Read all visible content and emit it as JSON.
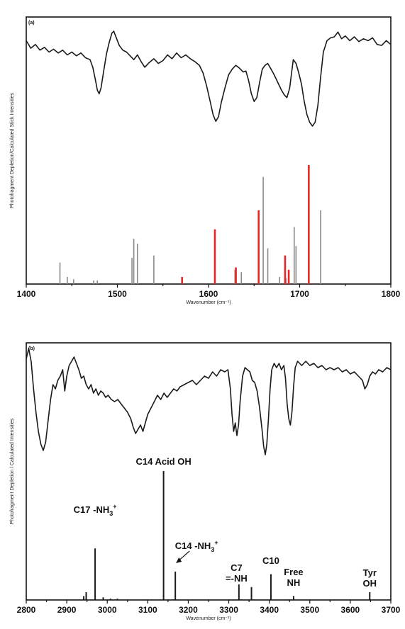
{
  "chart_data": [
    {
      "type": "bar",
      "panel_label": "(a)",
      "xlabel": "Wavenumber (cm⁻¹)",
      "ylabel": "Photofragment Depletion/Calculated Stick Intensities",
      "xlim": [
        1400,
        1800
      ],
      "xticks": [
        1400,
        1500,
        1600,
        1700,
        1800
      ],
      "grid": false,
      "legend": "none",
      "colors": {
        "spectrum": "#1a1a1a",
        "gray_sticks": "#8a8a8a",
        "red_sticks": "#e8262a",
        "axes": "#111111"
      },
      "spectrum": {
        "points": [
          [
            1400,
            0.9
          ],
          [
            1405,
            0.82
          ],
          [
            1410,
            0.86
          ],
          [
            1415,
            0.8
          ],
          [
            1420,
            0.83
          ],
          [
            1425,
            0.78
          ],
          [
            1430,
            0.81
          ],
          [
            1435,
            0.77
          ],
          [
            1440,
            0.8
          ],
          [
            1445,
            0.75
          ],
          [
            1450,
            0.78
          ],
          [
            1455,
            0.74
          ],
          [
            1460,
            0.77
          ],
          [
            1465,
            0.72
          ],
          [
            1470,
            0.7
          ],
          [
            1473,
            0.62
          ],
          [
            1476,
            0.48
          ],
          [
            1478,
            0.38
          ],
          [
            1480,
            0.34
          ],
          [
            1482,
            0.4
          ],
          [
            1485,
            0.58
          ],
          [
            1488,
            0.76
          ],
          [
            1491,
            0.88
          ],
          [
            1494,
            0.98
          ],
          [
            1496,
            1.0
          ],
          [
            1498,
            0.95
          ],
          [
            1502,
            0.85
          ],
          [
            1506,
            0.8
          ],
          [
            1510,
            0.78
          ],
          [
            1514,
            0.74
          ],
          [
            1518,
            0.7
          ],
          [
            1522,
            0.75
          ],
          [
            1526,
            0.68
          ],
          [
            1530,
            0.62
          ],
          [
            1535,
            0.67
          ],
          [
            1540,
            0.71
          ],
          [
            1545,
            0.66
          ],
          [
            1550,
            0.69
          ],
          [
            1555,
            0.75
          ],
          [
            1560,
            0.71
          ],
          [
            1565,
            0.77
          ],
          [
            1570,
            0.72
          ],
          [
            1575,
            0.75
          ],
          [
            1580,
            0.71
          ],
          [
            1585,
            0.68
          ],
          [
            1590,
            0.64
          ],
          [
            1594,
            0.56
          ],
          [
            1598,
            0.42
          ],
          [
            1602,
            0.25
          ],
          [
            1605,
            0.12
          ],
          [
            1608,
            0.05
          ],
          [
            1611,
            0.1
          ],
          [
            1614,
            0.25
          ],
          [
            1618,
            0.4
          ],
          [
            1622,
            0.54
          ],
          [
            1626,
            0.6
          ],
          [
            1630,
            0.64
          ],
          [
            1634,
            0.61
          ],
          [
            1638,
            0.57
          ],
          [
            1641,
            0.58
          ],
          [
            1644,
            0.48
          ],
          [
            1647,
            0.34
          ],
          [
            1650,
            0.26
          ],
          [
            1653,
            0.3
          ],
          [
            1656,
            0.46
          ],
          [
            1659,
            0.6
          ],
          [
            1662,
            0.64
          ],
          [
            1665,
            0.66
          ],
          [
            1668,
            0.61
          ],
          [
            1671,
            0.56
          ],
          [
            1674,
            0.5
          ],
          [
            1677,
            0.44
          ],
          [
            1680,
            0.38
          ],
          [
            1683,
            0.33
          ],
          [
            1686,
            0.3
          ],
          [
            1689,
            0.4
          ],
          [
            1691,
            0.55
          ],
          [
            1693,
            0.7
          ],
          [
            1696,
            0.66
          ],
          [
            1699,
            0.56
          ],
          [
            1702,
            0.44
          ],
          [
            1705,
            0.26
          ],
          [
            1708,
            0.12
          ],
          [
            1711,
            0.04
          ],
          [
            1714,
            0.0
          ],
          [
            1717,
            0.04
          ],
          [
            1720,
            0.22
          ],
          [
            1723,
            0.52
          ],
          [
            1726,
            0.78
          ],
          [
            1730,
            0.9
          ],
          [
            1734,
            0.93
          ],
          [
            1738,
            0.94
          ],
          [
            1742,
            0.99
          ],
          [
            1746,
            0.92
          ],
          [
            1750,
            0.95
          ],
          [
            1755,
            0.9
          ],
          [
            1760,
            0.94
          ],
          [
            1765,
            0.89
          ],
          [
            1770,
            0.92
          ],
          [
            1775,
            0.9
          ],
          [
            1780,
            0.93
          ],
          [
            1785,
            0.86
          ],
          [
            1790,
            0.85
          ],
          [
            1795,
            0.9
          ],
          [
            1800,
            0.86
          ]
        ]
      },
      "series": [
        {
          "values": [
            [
              1437,
              0.18
            ],
            [
              1445,
              0.06
            ],
            [
              1452,
              0.04
            ],
            [
              1474,
              0.03
            ],
            [
              1478,
              0.03
            ],
            [
              1516,
              0.22
            ],
            [
              1518,
              0.38
            ],
            [
              1522,
              0.34
            ],
            [
              1540,
              0.24
            ],
            [
              1629,
              0.12
            ],
            [
              1636,
              0.1
            ],
            [
              1660,
              0.9
            ],
            [
              1665,
              0.3
            ],
            [
              1678,
              0.06
            ],
            [
              1685,
              0.05
            ],
            [
              1694,
              0.48
            ],
            [
              1696,
              0.32
            ],
            [
              1723,
              0.62
            ]
          ]
        },
        {
          "values": [
            [
              1571,
              0.06
            ],
            [
              1607,
              0.46
            ],
            [
              1630,
              0.14
            ],
            [
              1655,
              0.62
            ],
            [
              1684,
              0.24
            ],
            [
              1688,
              0.12
            ],
            [
              1710,
              1.0
            ]
          ]
        }
      ]
    },
    {
      "type": "bar",
      "panel_label": "(b)",
      "xlabel": "Wavenumber (cm⁻¹)",
      "ylabel": "Photofragment Depletion / Calculated Intensities",
      "xlim": [
        2800,
        3700
      ],
      "xticks": [
        2800,
        2900,
        3000,
        3100,
        3200,
        3300,
        3400,
        3500,
        3600,
        3700
      ],
      "grid": false,
      "legend": "none",
      "colors": {
        "spectrum": "#1a1a1a",
        "sticks": "#1a1a1a",
        "axes": "#111111"
      },
      "spectrum": {
        "points": [
          [
            2800,
            0.9
          ],
          [
            2806,
            1.0
          ],
          [
            2812,
            0.88
          ],
          [
            2818,
            0.62
          ],
          [
            2824,
            0.4
          ],
          [
            2830,
            0.22
          ],
          [
            2836,
            0.1
          ],
          [
            2842,
            0.04
          ],
          [
            2848,
            0.12
          ],
          [
            2854,
            0.32
          ],
          [
            2860,
            0.52
          ],
          [
            2866,
            0.66
          ],
          [
            2872,
            0.62
          ],
          [
            2878,
            0.7
          ],
          [
            2884,
            0.74
          ],
          [
            2890,
            0.8
          ],
          [
            2895,
            0.6
          ],
          [
            2900,
            0.74
          ],
          [
            2906,
            0.84
          ],
          [
            2912,
            0.88
          ],
          [
            2918,
            0.92
          ],
          [
            2924,
            0.86
          ],
          [
            2930,
            0.8
          ],
          [
            2936,
            0.72
          ],
          [
            2942,
            0.74
          ],
          [
            2948,
            0.66
          ],
          [
            2954,
            0.62
          ],
          [
            2960,
            0.66
          ],
          [
            2966,
            0.58
          ],
          [
            2972,
            0.62
          ],
          [
            2978,
            0.56
          ],
          [
            2984,
            0.6
          ],
          [
            2990,
            0.58
          ],
          [
            2996,
            0.54
          ],
          [
            3002,
            0.56
          ],
          [
            3010,
            0.52
          ],
          [
            3018,
            0.5
          ],
          [
            3026,
            0.52
          ],
          [
            3034,
            0.48
          ],
          [
            3042,
            0.44
          ],
          [
            3050,
            0.4
          ],
          [
            3058,
            0.34
          ],
          [
            3064,
            0.26
          ],
          [
            3070,
            0.2
          ],
          [
            3076,
            0.24
          ],
          [
            3082,
            0.28
          ],
          [
            3088,
            0.22
          ],
          [
            3094,
            0.3
          ],
          [
            3100,
            0.38
          ],
          [
            3108,
            0.44
          ],
          [
            3116,
            0.5
          ],
          [
            3124,
            0.56
          ],
          [
            3132,
            0.52
          ],
          [
            3140,
            0.58
          ],
          [
            3148,
            0.54
          ],
          [
            3156,
            0.58
          ],
          [
            3164,
            0.62
          ],
          [
            3172,
            0.6
          ],
          [
            3180,
            0.64
          ],
          [
            3190,
            0.66
          ],
          [
            3200,
            0.68
          ],
          [
            3210,
            0.7
          ],
          [
            3220,
            0.66
          ],
          [
            3230,
            0.7
          ],
          [
            3240,
            0.74
          ],
          [
            3250,
            0.72
          ],
          [
            3260,
            0.78
          ],
          [
            3270,
            0.74
          ],
          [
            3280,
            0.8
          ],
          [
            3290,
            0.78
          ],
          [
            3298,
            0.8
          ],
          [
            3304,
            0.62
          ],
          [
            3308,
            0.38
          ],
          [
            3312,
            0.22
          ],
          [
            3316,
            0.3
          ],
          [
            3320,
            0.18
          ],
          [
            3324,
            0.28
          ],
          [
            3328,
            0.5
          ],
          [
            3334,
            0.74
          ],
          [
            3340,
            0.82
          ],
          [
            3346,
            0.8
          ],
          [
            3352,
            0.78
          ],
          [
            3358,
            0.7
          ],
          [
            3364,
            0.68
          ],
          [
            3370,
            0.6
          ],
          [
            3376,
            0.44
          ],
          [
            3382,
            0.24
          ],
          [
            3386,
            0.08
          ],
          [
            3390,
            0.0
          ],
          [
            3394,
            0.1
          ],
          [
            3398,
            0.34
          ],
          [
            3402,
            0.62
          ],
          [
            3406,
            0.8
          ],
          [
            3412,
            0.86
          ],
          [
            3418,
            0.82
          ],
          [
            3424,
            0.86
          ],
          [
            3430,
            0.8
          ],
          [
            3436,
            0.84
          ],
          [
            3440,
            0.72
          ],
          [
            3444,
            0.48
          ],
          [
            3448,
            0.34
          ],
          [
            3452,
            0.28
          ],
          [
            3456,
            0.4
          ],
          [
            3460,
            0.64
          ],
          [
            3464,
            0.82
          ],
          [
            3470,
            0.88
          ],
          [
            3480,
            0.84
          ],
          [
            3490,
            0.88
          ],
          [
            3500,
            0.84
          ],
          [
            3510,
            0.86
          ],
          [
            3520,
            0.82
          ],
          [
            3530,
            0.84
          ],
          [
            3540,
            0.8
          ],
          [
            3550,
            0.82
          ],
          [
            3560,
            0.8
          ],
          [
            3570,
            0.82
          ],
          [
            3580,
            0.78
          ],
          [
            3590,
            0.8
          ],
          [
            3600,
            0.76
          ],
          [
            3610,
            0.78
          ],
          [
            3620,
            0.74
          ],
          [
            3630,
            0.7
          ],
          [
            3636,
            0.62
          ],
          [
            3642,
            0.66
          ],
          [
            3648,
            0.74
          ],
          [
            3655,
            0.78
          ],
          [
            3662,
            0.76
          ],
          [
            3670,
            0.8
          ],
          [
            3680,
            0.78
          ],
          [
            3690,
            0.82
          ],
          [
            3700,
            0.8
          ]
        ]
      },
      "series": [
        {
          "values": [
            [
              2942,
              0.03
            ],
            [
              2948,
              0.06
            ],
            [
              2970,
              0.4
            ],
            [
              2990,
              0.02
            ],
            [
              3008,
              0.01
            ],
            [
              3025,
              0.01
            ],
            [
              3139,
              1.0
            ],
            [
              3168,
              0.22
            ],
            [
              3325,
              0.12
            ],
            [
              3356,
              0.1
            ],
            [
              3404,
              0.2
            ],
            [
              3460,
              0.03
            ],
            [
              3648,
              0.06
            ]
          ]
        }
      ],
      "annotations": [
        {
          "label": "C14 Acid OH",
          "x": 3139
        },
        {
          "label": "C17 -NH",
          "x": 2970,
          "suffix": "3",
          "superscript": "+"
        },
        {
          "label": "C14 -NH",
          "x": 3168,
          "suffix": "3",
          "superscript": "+"
        },
        {
          "lines": [
            "C7",
            "=-NH"
          ],
          "x": 3340
        },
        {
          "label": "C10",
          "x": 3404
        },
        {
          "lines": [
            "Free",
            "NH"
          ],
          "x": 3460
        },
        {
          "lines": [
            "Tyr",
            "OH"
          ],
          "x": 3648
        }
      ]
    }
  ]
}
